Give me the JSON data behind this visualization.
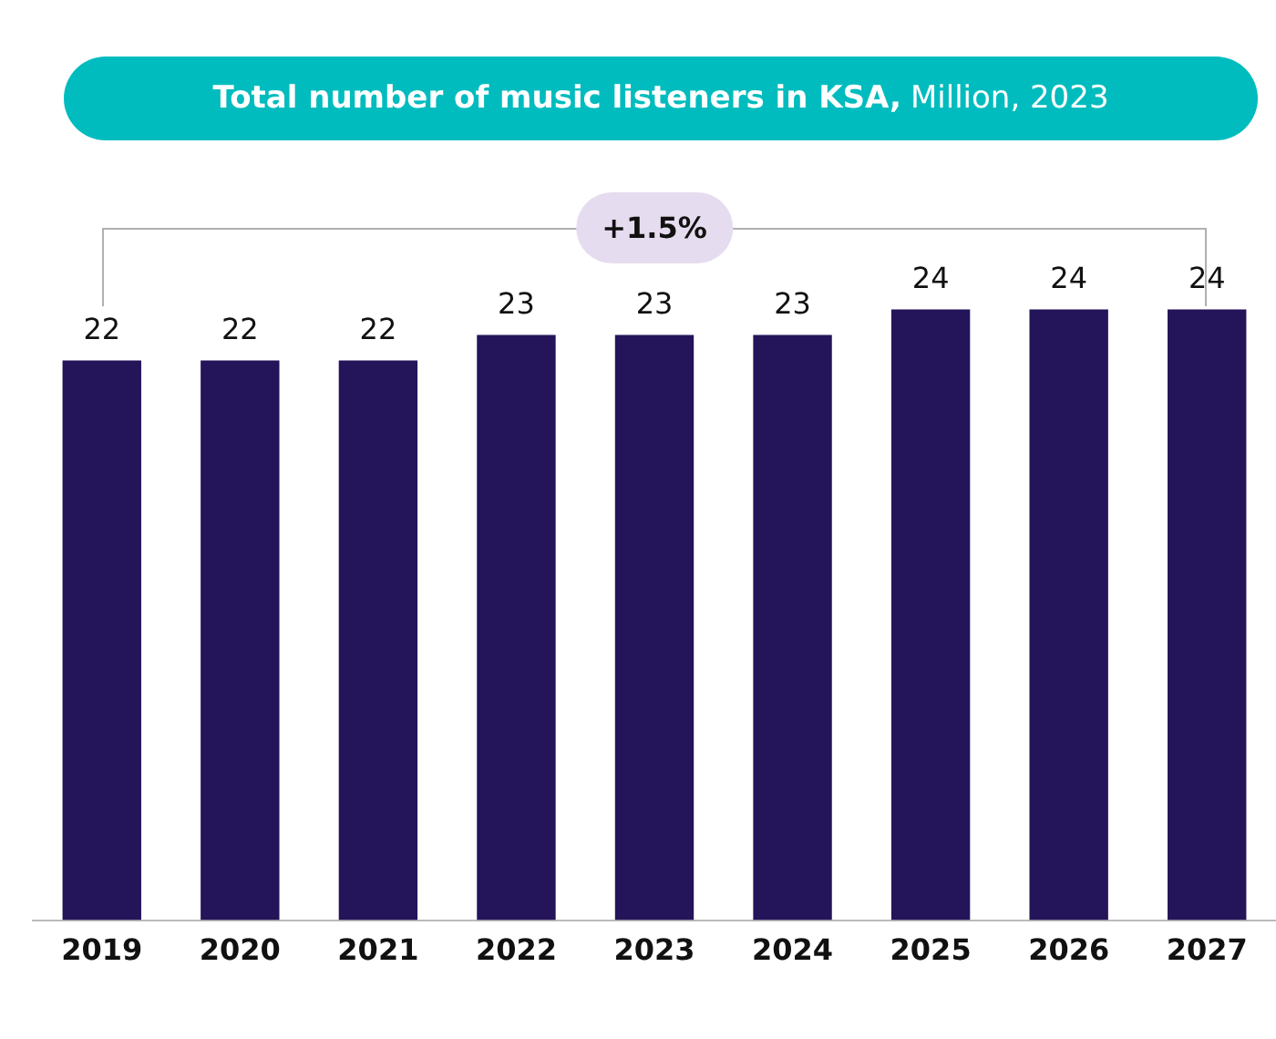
{
  "chart_data": {
    "type": "bar",
    "title": "Total number of music listeners in KSA,",
    "subtitle": "Million, 2023",
    "categories": [
      "2019",
      "2020",
      "2021",
      "2022",
      "2023",
      "2024",
      "2025",
      "2026",
      "2027"
    ],
    "values": [
      22,
      22,
      22,
      23,
      23,
      23,
      24,
      24,
      24
    ],
    "color": "#24145a",
    "ylim": [
      0,
      24
    ],
    "tick_labels": "x",
    "data_labels": true,
    "grid": false,
    "legend": false,
    "annotations": [
      "+1.5%"
    ]
  }
}
